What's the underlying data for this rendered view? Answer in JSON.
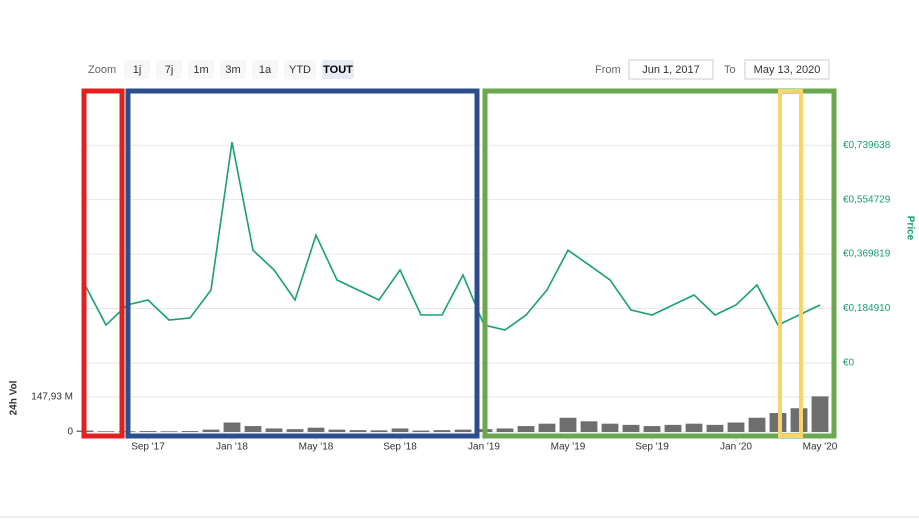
{
  "chart_data": {
    "type": "line",
    "range_selector": {
      "label": "Zoom",
      "buttons": [
        "1j",
        "7j",
        "1m",
        "3m",
        "1a",
        "YTD",
        "TOUT"
      ],
      "selected": "TOUT"
    },
    "date_range": {
      "from_label": "From",
      "from": "Jun 1, 2017",
      "to_label": "To",
      "to": "May 13, 2020"
    },
    "y_label": "Price",
    "y2_label": "24h Vol",
    "x": [
      "2017-06",
      "2017-07",
      "2017-08",
      "2017-09",
      "2017-10",
      "2017-11",
      "2017-12",
      "2018-01",
      "2018-02",
      "2018-03",
      "2018-04",
      "2018-05",
      "2018-06",
      "2018-07",
      "2018-08",
      "2018-09",
      "2018-10",
      "2018-11",
      "2018-12",
      "2019-01",
      "2019-02",
      "2019-03",
      "2019-04",
      "2019-05",
      "2019-06",
      "2019-07",
      "2019-08",
      "2019-09",
      "2019-10",
      "2019-11",
      "2019-12",
      "2020-01",
      "2020-02",
      "2020-03",
      "2020-04",
      "2020-05"
    ],
    "xticks": [
      {
        "value": "2017-09",
        "label": "Sep '17"
      },
      {
        "value": "2018-01",
        "label": "Jan '18"
      },
      {
        "value": "2018-05",
        "label": "May '18"
      },
      {
        "value": "2018-09",
        "label": "Sep '18"
      },
      {
        "value": "2019-01",
        "label": "Jan '19"
      },
      {
        "value": "2019-05",
        "label": "May '19"
      },
      {
        "value": "2019-09",
        "label": "Sep '19"
      },
      {
        "value": "2020-01",
        "label": "Jan '20"
      },
      {
        "value": "2020-05",
        "label": "May '20"
      }
    ],
    "series": [
      {
        "name": "Price",
        "color": "#18a172",
        "axis": "y",
        "type": "line",
        "values": [
          0.265,
          0.129,
          0.197,
          0.214,
          0.146,
          0.153,
          0.248,
          0.75,
          0.383,
          0.316,
          0.214,
          0.434,
          0.282,
          0.248,
          0.214,
          0.316,
          0.163,
          0.163,
          0.299,
          0.129,
          0.112,
          0.163,
          0.248,
          0.383,
          0.333,
          0.282,
          0.18,
          0.163,
          0.197,
          0.231,
          0.163,
          0.197,
          0.265,
          0.129,
          0.163,
          0.197
        ]
      },
      {
        "name": "24h Vol",
        "color": "#6e6e6e",
        "axis": "y2",
        "type": "bar",
        "values": [
          6,
          3,
          3,
          4,
          3,
          4,
          10,
          40,
          25,
          15,
          12,
          18,
          10,
          8,
          7,
          15,
          6,
          8,
          10,
          12,
          15,
          25,
          35,
          60,
          45,
          35,
          30,
          25,
          30,
          35,
          30,
          40,
          60,
          80,
          100,
          150
        ]
      }
    ],
    "ylim": [
      0,
      0.9
    ],
    "yticks": [
      {
        "value": 0,
        "label": "€0"
      },
      {
        "value": 0.18491,
        "label": "€0,184910"
      },
      {
        "value": 0.369819,
        "label": "€0,369819"
      },
      {
        "value": 0.554729,
        "label": "€0,554729"
      },
      {
        "value": 0.739638,
        "label": "€0,739638"
      }
    ],
    "y2lim": [
      0,
      160
    ],
    "y2ticks": [
      0,
      {
        "value": 147.93,
        "label": "147,93 M"
      }
    ],
    "grid": true
  }
}
